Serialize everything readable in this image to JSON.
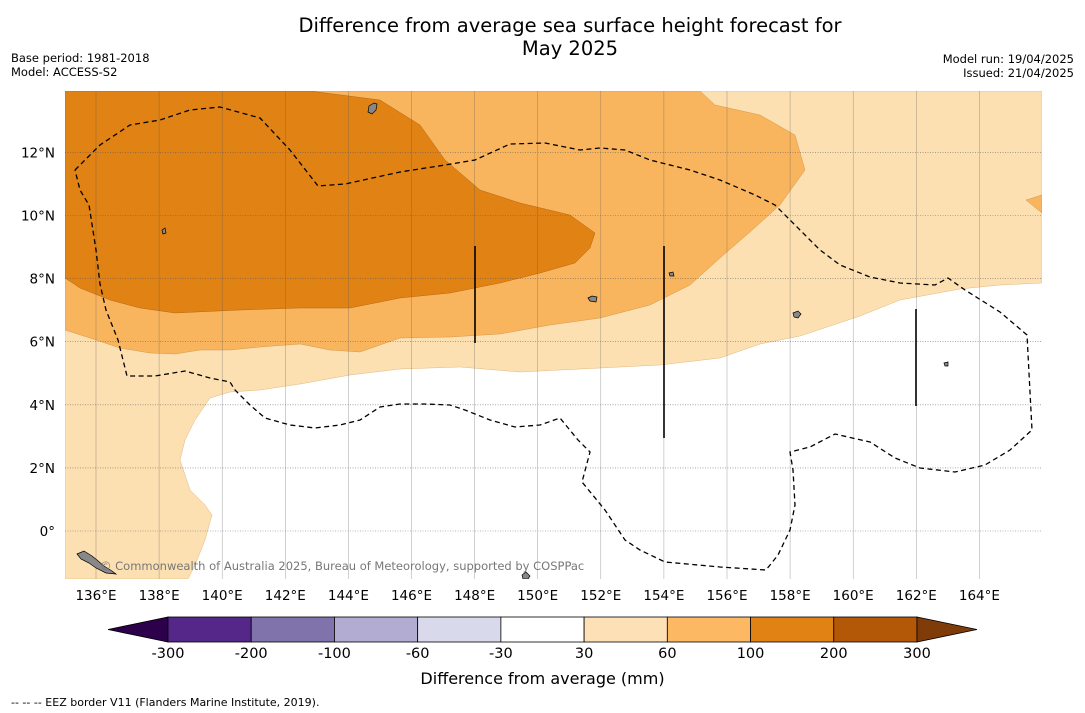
{
  "header": {
    "title_line1": "Difference from average sea surface height forecast for",
    "title_line2": "May 2025",
    "base_period": "Base period: 1981-2018",
    "model": "Model: ACCESS-S2",
    "model_run": "Model run: 19/04/2025",
    "issued": "Issued: 21/04/2025"
  },
  "map": {
    "lon_labels": [
      "136°E",
      "138°E",
      "140°E",
      "142°E",
      "144°E",
      "146°E",
      "148°E",
      "150°E",
      "152°E",
      "154°E",
      "156°E",
      "158°E",
      "160°E",
      "162°E",
      "164°E"
    ],
    "lat_labels": [
      "12°N",
      "10°N",
      "8°N",
      "6°N",
      "4°N",
      "2°N",
      "0°"
    ],
    "lon_range": [
      135,
      166
    ],
    "lat_range": [
      -1.5,
      13.9
    ],
    "grid": true,
    "watermark": "© Commonwealth of Australia 2025, Bureau of Meteorology, supported by COSPPac",
    "colors": {
      "land": "#888888",
      "level_30_60": "#fde0b2",
      "level_60_100": "#f9b55e",
      "level_100_200": "#e08214",
      "level_200_300": "#b35806",
      "eez_border": "#000000"
    }
  },
  "colorbar": {
    "ticks": [
      "-300",
      "-200",
      "-100",
      "-60",
      "-30",
      "30",
      "60",
      "100",
      "200",
      "300"
    ],
    "bins": [
      {
        "from": -300,
        "to": -200,
        "color": "#542788"
      },
      {
        "from": -200,
        "to": -100,
        "color": "#8073ac"
      },
      {
        "from": -100,
        "to": -60,
        "color": "#b2abd2"
      },
      {
        "from": -60,
        "to": -30,
        "color": "#d8daeb"
      },
      {
        "from": -30,
        "to": 30,
        "color": "#ffffff"
      },
      {
        "from": 30,
        "to": 60,
        "color": "#fee0b6"
      },
      {
        "from": 60,
        "to": 100,
        "color": "#fdb863"
      },
      {
        "from": 100,
        "to": 200,
        "color": "#e08214"
      },
      {
        "from": 200,
        "to": 300,
        "color": "#b35806"
      }
    ],
    "under_color": "#2d004b",
    "over_color": "#7f3b08",
    "label": "Difference from average (mm)"
  },
  "footnote": "--  --  -- EEZ border V11 (Flanders Marine Institute, 2019)."
}
